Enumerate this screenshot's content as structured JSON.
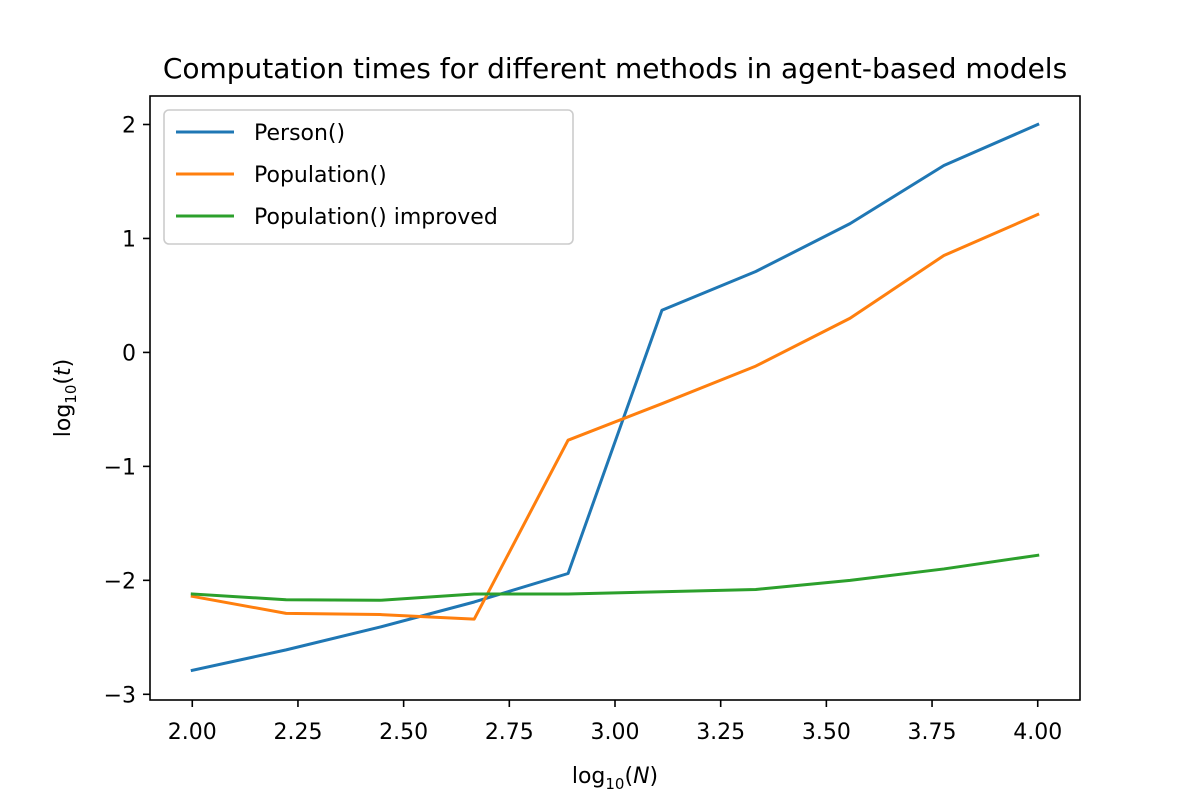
{
  "chart_data": {
    "type": "line",
    "title": "Computation times for different methods in agent-based models",
    "xlabel": {
      "prefix": "log",
      "sub": "10",
      "var": "N"
    },
    "ylabel": {
      "prefix": "log",
      "sub": "10",
      "var": "t"
    },
    "xlim": [
      1.9,
      4.1
    ],
    "ylim": [
      -3.05,
      2.25
    ],
    "xticks": [
      2.0,
      2.25,
      2.5,
      2.75,
      3.0,
      3.25,
      3.5,
      3.75,
      4.0
    ],
    "xtick_labels": [
      "2.00",
      "2.25",
      "2.50",
      "2.75",
      "3.00",
      "3.25",
      "3.50",
      "3.75",
      "4.00"
    ],
    "yticks": [
      -3,
      -2,
      -1,
      0,
      1,
      2
    ],
    "ytick_labels": [
      "−3",
      "−2",
      "−1",
      "0",
      "1",
      "2"
    ],
    "x": [
      2.0,
      2.222,
      2.444,
      2.667,
      2.889,
      3.111,
      3.333,
      3.556,
      3.778,
      4.0
    ],
    "series": [
      {
        "name": "Person()",
        "color": "#1f77b4",
        "values": [
          -2.79,
          -2.61,
          -2.41,
          -2.19,
          -1.94,
          0.37,
          0.71,
          1.13,
          1.64,
          2.0
        ]
      },
      {
        "name": "Population()",
        "color": "#ff7f0e",
        "values": [
          -2.14,
          -2.29,
          -2.3,
          -2.34,
          -0.77,
          -0.45,
          -0.12,
          0.3,
          0.85,
          1.21
        ]
      },
      {
        "name": "Population() improved",
        "color": "#2ca02c",
        "values": [
          -2.12,
          -2.17,
          -2.175,
          -2.12,
          -2.12,
          -2.1,
          -2.08,
          -2.0,
          -1.9,
          -1.78
        ]
      }
    ],
    "grid": false,
    "legend_position": "top-left"
  }
}
